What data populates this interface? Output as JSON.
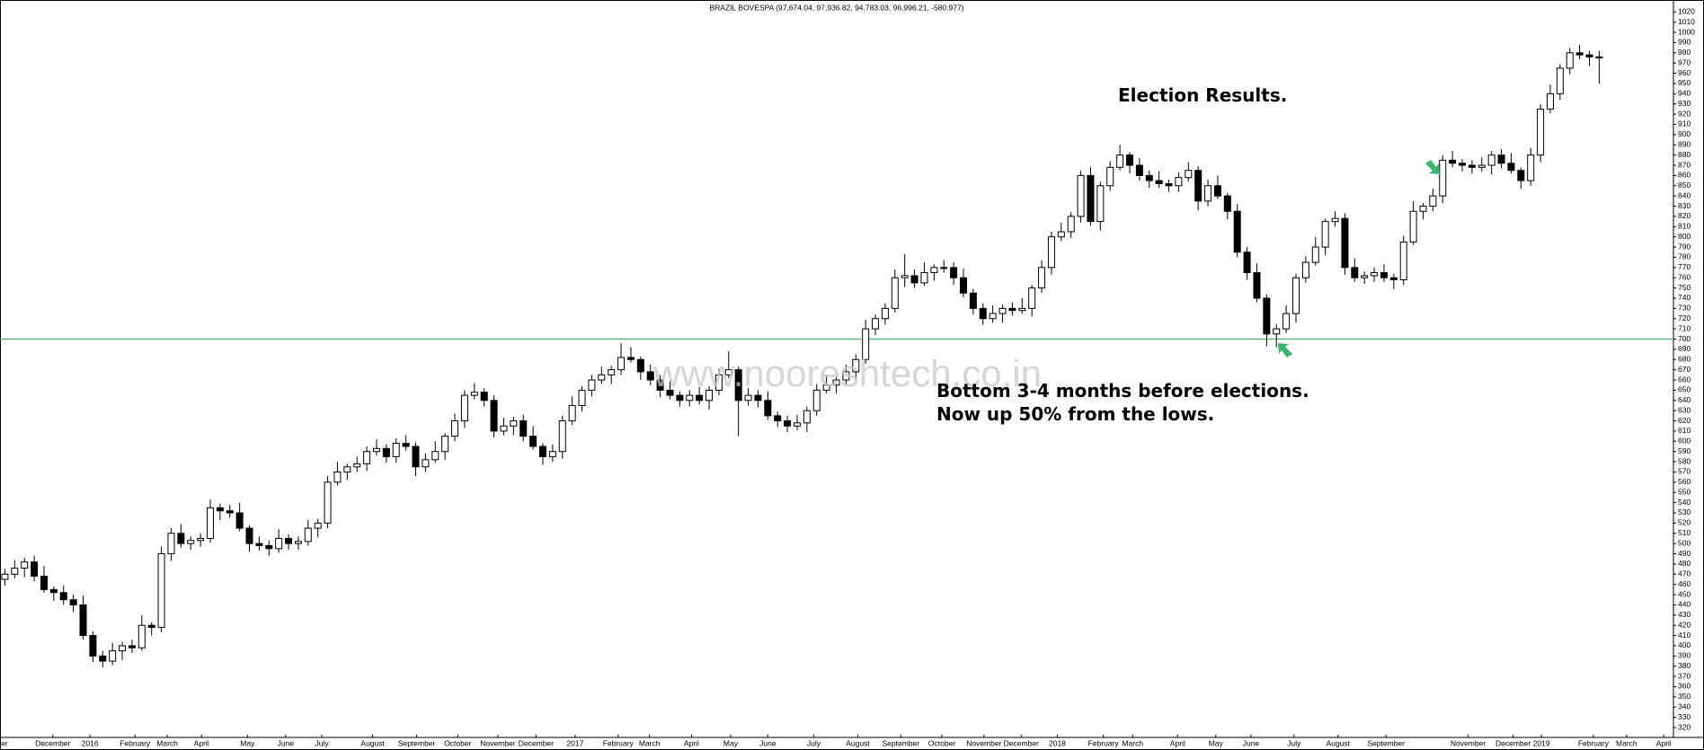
{
  "chart_data": {
    "type": "candlestick",
    "title": "BRAZIL BOVESPA (97,674.04, 97,936.82, 94,783.03, 96,996.21, -580.977)",
    "watermark": "www.nooreshtech.co.in",
    "annotations": [
      "Election Results.",
      "Bottom 3-4 months before elections.",
      "Now up 50% from the lows."
    ],
    "up_color": "#ffffff",
    "down_color": "#000000",
    "reference_line": {
      "value": 700,
      "color": "#3cb371"
    },
    "xlim": [
      -0.5,
      170.5
    ],
    "ylim": [
      320,
      1020
    ],
    "yticks": [
      320,
      330,
      340,
      350,
      360,
      370,
      380,
      390,
      400,
      410,
      420,
      430,
      440,
      450,
      460,
      470,
      480,
      490,
      500,
      510,
      520,
      530,
      540,
      550,
      560,
      570,
      580,
      590,
      600,
      610,
      620,
      630,
      640,
      650,
      660,
      670,
      680,
      690,
      700,
      710,
      720,
      730,
      740,
      750,
      760,
      770,
      780,
      790,
      800,
      810,
      820,
      830,
      840,
      850,
      860,
      870,
      880,
      890,
      900,
      910,
      920,
      930,
      940,
      950,
      960,
      970,
      980,
      990,
      1000,
      1010,
      1020
    ],
    "xticks": [
      {
        "value": -1.5,
        "label": "November"
      },
      {
        "value": 4.9,
        "label": "December"
      },
      {
        "value": 8.7,
        "label": "2016"
      },
      {
        "value": 13.3,
        "label": "February"
      },
      {
        "value": 16.6,
        "label": "March"
      },
      {
        "value": 20.1,
        "label": "April"
      },
      {
        "value": 24.8,
        "label": "May"
      },
      {
        "value": 28.7,
        "label": "June"
      },
      {
        "value": 32.4,
        "label": "July"
      },
      {
        "value": 37.6,
        "label": "August"
      },
      {
        "value": 42.1,
        "label": "September"
      },
      {
        "value": 46.3,
        "label": "October"
      },
      {
        "value": 50.4,
        "label": "November"
      },
      {
        "value": 54.3,
        "label": "December"
      },
      {
        "value": 58.3,
        "label": "2017"
      },
      {
        "value": 62.7,
        "label": "February"
      },
      {
        "value": 65.9,
        "label": "March"
      },
      {
        "value": 70.2,
        "label": "April"
      },
      {
        "value": 74.2,
        "label": "May"
      },
      {
        "value": 78,
        "label": "June"
      },
      {
        "value": 82.7,
        "label": "July"
      },
      {
        "value": 87.2,
        "label": "August"
      },
      {
        "value": 91.6,
        "label": "September"
      },
      {
        "value": 95.8,
        "label": "October"
      },
      {
        "value": 100.1,
        "label": "November"
      },
      {
        "value": 103.9,
        "label": "December"
      },
      {
        "value": 107.6,
        "label": "2018"
      },
      {
        "value": 112.3,
        "label": "February"
      },
      {
        "value": 115.3,
        "label": "March"
      },
      {
        "value": 119.9,
        "label": "April"
      },
      {
        "value": 123.8,
        "label": "May"
      },
      {
        "value": 127.4,
        "label": "June"
      },
      {
        "value": 131.8,
        "label": "July"
      },
      {
        "value": 136.3,
        "label": "August"
      },
      {
        "value": 141.2,
        "label": "September"
      },
      {
        "value": 149.6,
        "label": "November"
      },
      {
        "value": 154.2,
        "label": "December"
      },
      {
        "value": 157.1,
        "label": "2019"
      },
      {
        "value": 162.4,
        "label": "February"
      },
      {
        "value": 165.8,
        "label": "March"
      },
      {
        "value": 169.6,
        "label": "April"
      }
    ],
    "open": [
      465,
      470,
      476,
      482,
      468,
      455,
      452,
      445,
      440,
      410,
      390,
      385,
      395,
      400,
      398,
      420,
      418,
      490,
      510,
      500,
      503,
      505,
      535,
      532,
      530,
      515,
      500,
      498,
      495,
      505,
      500,
      502,
      515,
      520,
      560,
      570,
      575,
      578,
      590,
      593,
      585,
      598,
      595,
      575,
      582,
      590,
      605,
      620,
      645,
      648,
      640,
      610,
      615,
      620,
      605,
      595,
      585,
      590,
      620,
      635,
      650,
      660,
      665,
      670,
      682,
      680,
      668,
      660,
      650,
      645,
      640,
      645,
      640,
      650,
      665,
      670,
      640,
      645,
      640,
      625,
      620,
      615,
      618,
      630,
      650,
      655,
      660,
      668,
      680,
      710,
      720,
      730,
      760,
      762,
      755,
      765,
      770,
      770,
      760,
      745,
      730,
      720,
      725,
      730,
      728,
      730,
      750,
      770,
      800,
      805,
      820,
      860,
      815,
      850,
      868,
      880,
      870,
      860,
      855,
      852,
      850,
      858,
      865,
      835,
      850,
      840,
      825,
      785,
      765,
      740,
      705,
      710,
      725,
      760,
      775,
      790,
      815,
      818,
      770,
      760,
      762,
      765,
      760,
      758,
      795,
      825,
      830,
      840,
      875,
      872,
      870,
      868,
      870,
      880,
      872,
      865,
      855,
      880,
      925,
      940,
      965,
      980,
      978,
      976
    ],
    "high": [
      475,
      484,
      486,
      488,
      478,
      458,
      459,
      450,
      449,
      414,
      395,
      403,
      404,
      406,
      430,
      423,
      497,
      515,
      519,
      507,
      510,
      543,
      539,
      538,
      540,
      518,
      507,
      503,
      514,
      509,
      507,
      523,
      524,
      566,
      580,
      578,
      585,
      595,
      602,
      597,
      603,
      606,
      599,
      588,
      600,
      608,
      627,
      650,
      657,
      652,
      645,
      623,
      624,
      626,
      615,
      598,
      597,
      625,
      644,
      654,
      665,
      673,
      674,
      696,
      692,
      683,
      675,
      665,
      659,
      649,
      650,
      653,
      654,
      671,
      688,
      673,
      652,
      650,
      649,
      629,
      625,
      626,
      634,
      656,
      665,
      663,
      675,
      685,
      719,
      724,
      735,
      768,
      783,
      768,
      775,
      773,
      777,
      775,
      769,
      749,
      735,
      733,
      734,
      736,
      740,
      753,
      777,
      805,
      814,
      824,
      865,
      868,
      854,
      874,
      890,
      883,
      877,
      865,
      864,
      856,
      863,
      873,
      869,
      856,
      860,
      843,
      832,
      790,
      774,
      744,
      715,
      733,
      764,
      781,
      800,
      818,
      825,
      823,
      779,
      766,
      770,
      773,
      764,
      801,
      835,
      833,
      847,
      880,
      884,
      876,
      875,
      878,
      884,
      886,
      882,
      868,
      887,
      930,
      949,
      969,
      985,
      988,
      982,
      982
    ],
    "low": [
      459,
      466,
      467,
      463,
      452,
      444,
      440,
      433,
      406,
      384,
      379,
      381,
      386,
      393,
      395,
      410,
      413,
      483,
      496,
      494,
      497,
      501,
      523,
      525,
      512,
      492,
      493,
      488,
      491,
      494,
      494,
      498,
      506,
      515,
      557,
      562,
      570,
      571,
      586,
      579,
      579,
      591,
      566,
      570,
      579,
      582,
      600,
      613,
      641,
      634,
      604,
      606,
      606,
      600,
      592,
      577,
      580,
      583,
      616,
      629,
      644,
      656,
      656,
      665,
      677,
      660,
      655,
      643,
      641,
      634,
      634,
      636,
      631,
      645,
      662,
      605,
      635,
      633,
      621,
      614,
      609,
      611,
      609,
      625,
      647,
      647,
      655,
      661,
      676,
      704,
      714,
      726,
      751,
      750,
      752,
      757,
      765,
      753,
      741,
      724,
      714,
      716,
      716,
      723,
      725,
      722,
      745,
      763,
      796,
      799,
      814,
      811,
      806,
      845,
      865,
      862,
      855,
      848,
      848,
      844,
      844,
      854,
      826,
      830,
      837,
      817,
      780,
      758,
      736,
      693,
      692,
      706,
      716,
      755,
      772,
      782,
      810,
      763,
      756,
      754,
      756,
      756,
      749,
      753,
      792,
      817,
      825,
      833,
      868,
      864,
      862,
      864,
      861,
      867,
      862,
      847,
      850,
      873,
      921,
      934,
      959,
      974,
      967,
      950
    ],
    "close": [
      470,
      476,
      482,
      468,
      455,
      452,
      445,
      440,
      410,
      390,
      385,
      395,
      400,
      398,
      420,
      418,
      490,
      510,
      500,
      503,
      505,
      535,
      532,
      530,
      515,
      500,
      498,
      495,
      505,
      500,
      502,
      515,
      520,
      560,
      570,
      575,
      578,
      590,
      593,
      585,
      598,
      595,
      575,
      582,
      590,
      605,
      620,
      645,
      648,
      640,
      610,
      615,
      620,
      605,
      595,
      585,
      590,
      620,
      635,
      650,
      660,
      665,
      670,
      682,
      680,
      668,
      660,
      650,
      645,
      640,
      645,
      640,
      650,
      665,
      670,
      640,
      645,
      640,
      625,
      620,
      615,
      618,
      630,
      650,
      655,
      660,
      668,
      680,
      710,
      720,
      730,
      760,
      762,
      755,
      765,
      770,
      770,
      760,
      745,
      730,
      720,
      725,
      730,
      728,
      730,
      750,
      770,
      800,
      805,
      820,
      860,
      815,
      850,
      868,
      880,
      870,
      860,
      855,
      852,
      850,
      858,
      865,
      835,
      850,
      840,
      825,
      785,
      765,
      740,
      705,
      710,
      725,
      760,
      775,
      790,
      815,
      818,
      770,
      760,
      762,
      765,
      760,
      758,
      795,
      825,
      830,
      840,
      875,
      872,
      870,
      868,
      870,
      880,
      872,
      865,
      855,
      880,
      925,
      940,
      965,
      980,
      978,
      976,
      975
    ]
  }
}
